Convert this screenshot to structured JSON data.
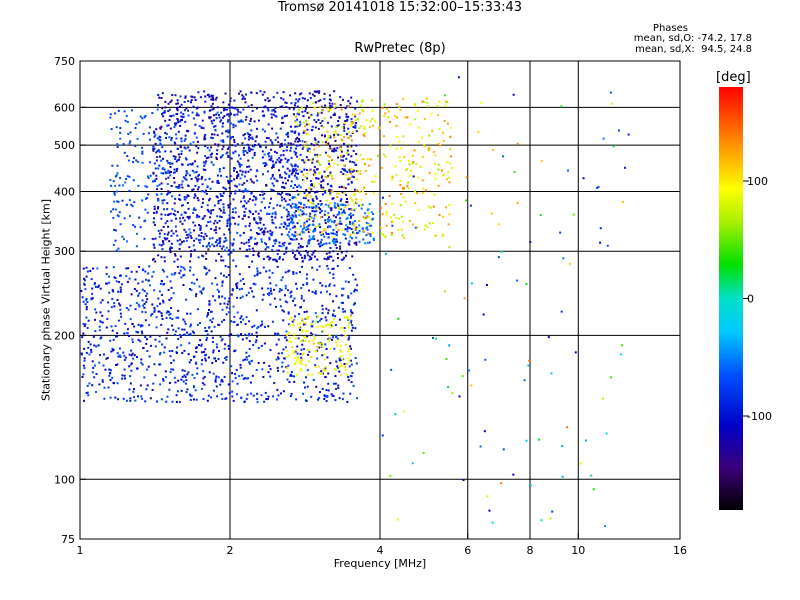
{
  "title_line1": "Tromsø 20141018 15:32:00–15:33:43",
  "title_line2": "RwPretec (8p)",
  "phase_stats": {
    "title": "Phases",
    "o_line": "mean, sd,O: -74.2, 17.8",
    "x_line": "mean, sd,X:  94.5, 24.8"
  },
  "chart_data": {
    "type": "scatter",
    "xlabel": "Frequency [MHz]",
    "ylabel": "Stationary phase Virtual Height [km]",
    "xscale": "log",
    "yscale": "log",
    "xlim": [
      1,
      16
    ],
    "ylim": [
      75,
      750
    ],
    "x_ticks": [
      1,
      2,
      4,
      6,
      8,
      10,
      16
    ],
    "y_ticks": [
      75,
      100,
      200,
      300,
      400,
      500,
      600,
      750
    ],
    "x_grid": [
      2,
      4,
      6,
      8,
      10
    ],
    "y_grid": [
      100,
      200,
      300,
      400,
      500,
      600
    ],
    "grid": true,
    "colorbar": {
      "unit": "[deg]",
      "range": [
        -180,
        180
      ],
      "ticks": [
        100,
        0,
        -100
      ]
    },
    "point_groups": [
      {
        "region": "F-layer blue",
        "x_range": [
          1.4,
          3.6
        ],
        "y_range": [
          285,
          650
        ],
        "phase_range": [
          -140,
          -80
        ],
        "count": 1400
      },
      {
        "region": "F-layer light blue",
        "x_range": [
          1.15,
          2.8
        ],
        "y_range": [
          300,
          600
        ],
        "phase_range": [
          -85,
          -55
        ],
        "count": 450
      },
      {
        "region": "F-layer cyan low",
        "x_range": [
          2.6,
          3.9
        ],
        "y_range": [
          310,
          380
        ],
        "phase_range": [
          -70,
          -45
        ],
        "count": 180
      },
      {
        "region": "F-layer warm",
        "x_range": [
          2.7,
          5.6
        ],
        "y_range": [
          320,
          630
        ],
        "phase_range": [
          60,
          140
        ],
        "count": 420
      },
      {
        "region": "E-layer blue",
        "x_range": [
          1.0,
          3.6
        ],
        "y_range": [
          145,
          280
        ],
        "phase_range": [
          -120,
          -60
        ],
        "count": 1100
      },
      {
        "region": "E-layer yellow",
        "x_range": [
          2.6,
          3.5
        ],
        "y_range": [
          165,
          220
        ],
        "phase_range": [
          75,
          110
        ],
        "count": 140
      },
      {
        "region": "scattered high freq",
        "x_range": [
          4.0,
          13.0
        ],
        "y_range": [
          78,
          700
        ],
        "phase_range": [
          -120,
          150
        ],
        "count": 110
      }
    ]
  }
}
